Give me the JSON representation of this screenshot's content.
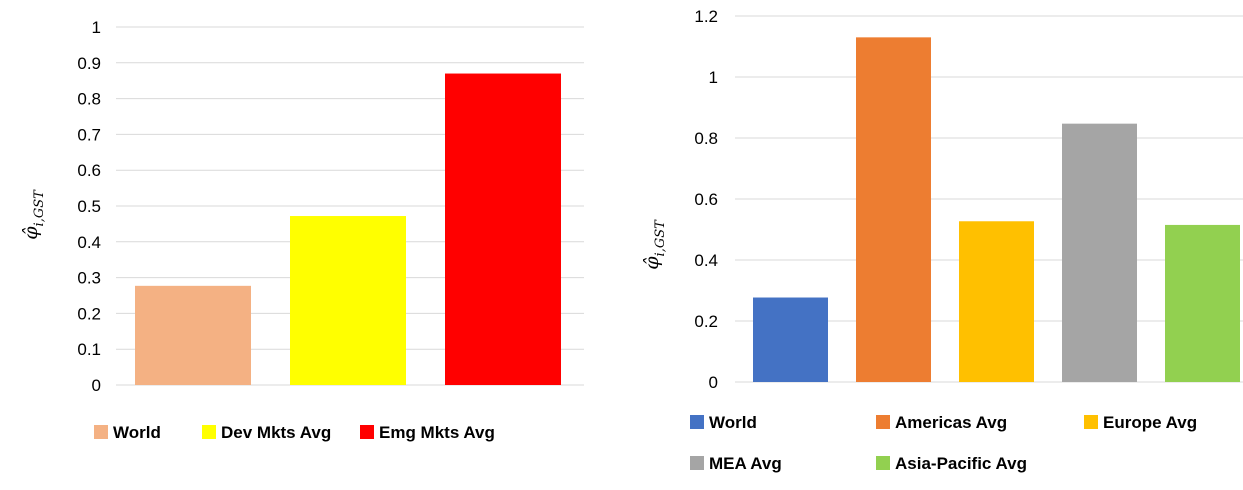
{
  "chart_data": [
    {
      "type": "bar",
      "categories": [
        "World",
        "Dev Mkts Avg",
        "Emg Mkts Avg"
      ],
      "values": [
        0.277,
        0.472,
        0.87
      ],
      "colors": [
        "#F4B183",
        "#FFFF00",
        "#FF0000"
      ],
      "ylabel": "φ̂",
      "ylabel_sub": "i,GST",
      "ylim": [
        0,
        1
      ],
      "yticks": [
        0,
        0.1,
        0.2,
        0.3,
        0.4,
        0.5,
        0.6,
        0.7,
        0.8,
        0.9,
        1
      ],
      "ytick_labels": [
        "0",
        "0.1",
        "0.2",
        "0.3",
        "0.4",
        "0.5",
        "0.6",
        "0.7",
        "0.8",
        "0.9",
        "1"
      ],
      "grid": true,
      "legend_position": "bottom"
    },
    {
      "type": "bar",
      "categories": [
        "World",
        "Americas Avg",
        "Europe Avg",
        "MEA Avg",
        "Asia-Pacific Avg"
      ],
      "values": [
        0.277,
        1.13,
        0.527,
        0.847,
        0.515
      ],
      "colors": [
        "#4472C4",
        "#ED7D31",
        "#FFC000",
        "#A5A5A5",
        "#92D050"
      ],
      "ylabel": "φ̂",
      "ylabel_sub": "i,GST",
      "ylim": [
        0,
        1.2
      ],
      "yticks": [
        0,
        0.2,
        0.4,
        0.6,
        0.8,
        1,
        1.2
      ],
      "ytick_labels": [
        "0",
        "0.2",
        "0.4",
        "0.6",
        "0.8",
        "1",
        "1.2"
      ],
      "grid": true,
      "legend_position": "bottom"
    }
  ]
}
